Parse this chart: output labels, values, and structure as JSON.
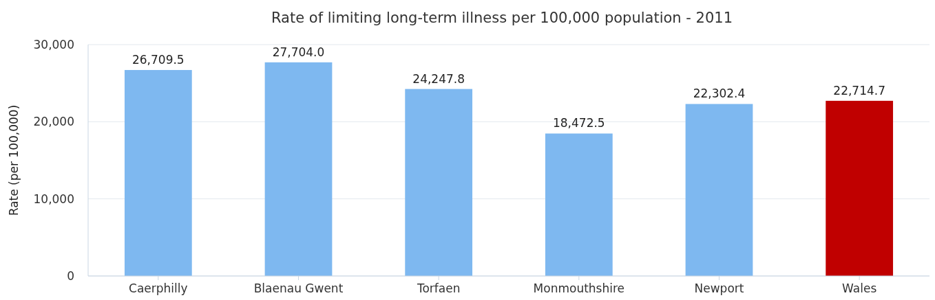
{
  "chart_data": {
    "type": "bar",
    "title": "Rate of limiting long-term illness per 100,000 population - 2011",
    "ylabel": "Rate (per 100,000)",
    "categories": [
      "Caerphilly",
      "Blaenau Gwent",
      "Torfaen",
      "Monmouthshire",
      "Newport",
      "Wales"
    ],
    "values": [
      26709.5,
      27704.0,
      24247.8,
      18472.5,
      22302.4,
      22714.7
    ],
    "value_labels": [
      "26,709.5",
      "27,704.0",
      "24,247.8",
      "18,472.5",
      "22,302.4",
      "22,714.7"
    ],
    "colors": [
      "#7eb8f0",
      "#7eb8f0",
      "#7eb8f0",
      "#7eb8f0",
      "#7eb8f0",
      "#c00000"
    ],
    "ylim": [
      0,
      30000
    ],
    "yticks": [
      {
        "value": 0,
        "label": "0"
      },
      {
        "value": 10000,
        "label": "10,000"
      },
      {
        "value": 20000,
        "label": "20,000"
      },
      {
        "value": 30000,
        "label": "30,000"
      }
    ],
    "grid": "y"
  }
}
